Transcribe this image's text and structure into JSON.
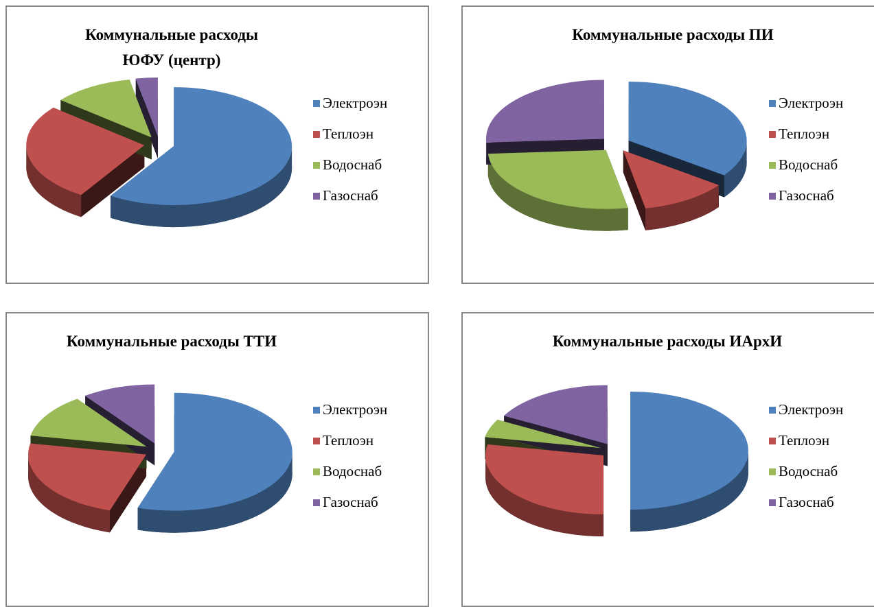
{
  "chart_data": [
    {
      "type": "pie",
      "title": "Коммунальные расходы ЮФУ (центр)",
      "categories": [
        "Электроэн",
        "Теплоэн",
        "Водоснаб",
        "Газоснаб"
      ],
      "values": [
        59,
        27,
        11,
        3
      ],
      "colors": [
        "#4f81bd",
        "#c0504d",
        "#9bbb59",
        "#8064a2"
      ],
      "legend": "right"
    },
    {
      "type": "pie",
      "title": "Коммунальные расходы ПИ",
      "categories": [
        "Электроэн",
        "Теплоэн",
        "Водоснаб",
        "Газоснаб"
      ],
      "values": [
        35,
        12,
        27,
        26
      ],
      "colors": [
        "#4f81bd",
        "#c0504d",
        "#9bbb59",
        "#8064a2"
      ],
      "legend": "right"
    },
    {
      "type": "pie",
      "title": "Коммунальные расходы ТТИ",
      "categories": [
        "Электроэн",
        "Теплоэн",
        "Водоснаб",
        "Газоснаб"
      ],
      "values": [
        55,
        23,
        12,
        10
      ],
      "colors": [
        "#4f81bd",
        "#c0504d",
        "#9bbb59",
        "#8064a2"
      ],
      "legend": "right"
    },
    {
      "type": "pie",
      "title": "Коммунальные расходы ИАрхИ",
      "categories": [
        "Электроэн",
        "Теплоэн",
        "Водоснаб",
        "Газоснаб"
      ],
      "values": [
        50,
        28,
        5,
        17
      ],
      "colors": [
        "#4f81bd",
        "#c0504d",
        "#9bbb59",
        "#8064a2"
      ],
      "legend": "right"
    }
  ]
}
